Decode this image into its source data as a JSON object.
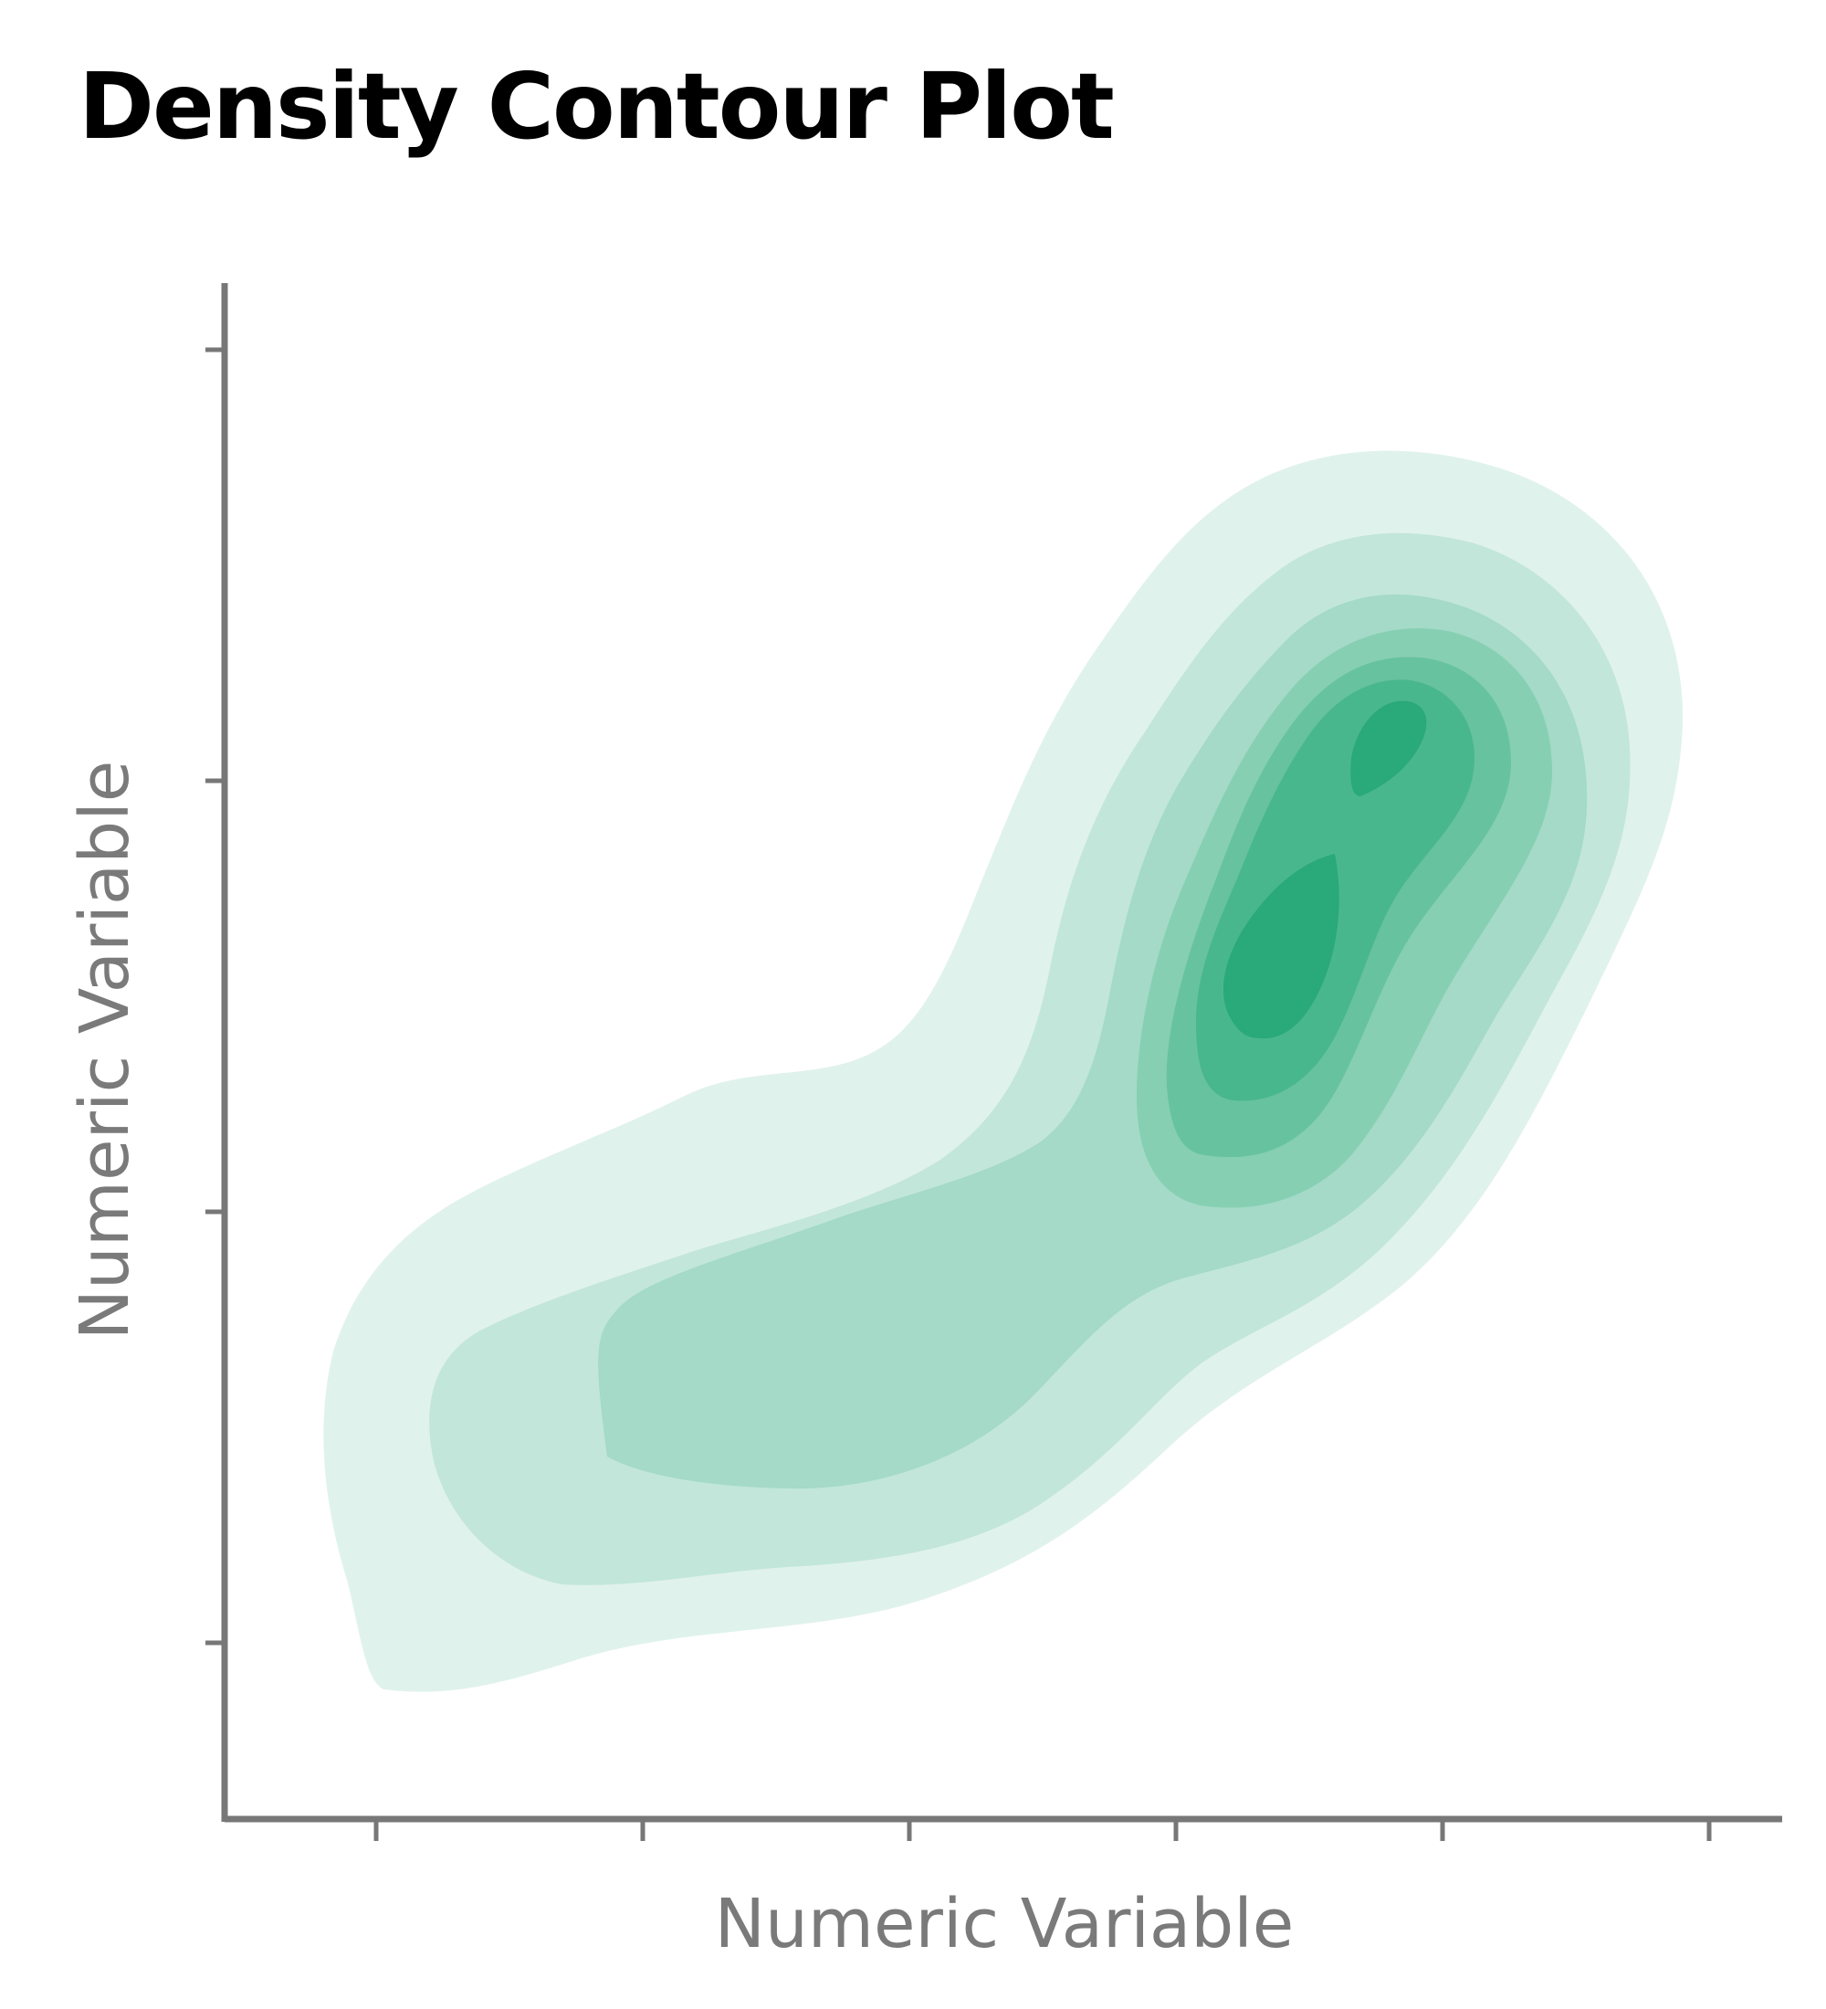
{
  "chart_data": {
    "type": "density_contour",
    "title": "Density Contour Plot",
    "xlabel": "Numeric Variable",
    "ylabel": "Numeric Variable",
    "x_ticks_count": 6,
    "y_ticks_count": 4,
    "tick_labels_visible": false,
    "grid": false,
    "legend": "none",
    "fill": true,
    "contour_levels": 8,
    "colors": {
      "base": "#2aa97b",
      "axis": "#777777",
      "label": "#7a7a7a",
      "title": "#000000"
    },
    "level_fills": [
      "#e0f2ec",
      "#c2e6da",
      "#a4dac7",
      "#86cfb3",
      "#67c2a0",
      "#49b78d",
      "#2aa97b",
      "#22a473"
    ]
  }
}
